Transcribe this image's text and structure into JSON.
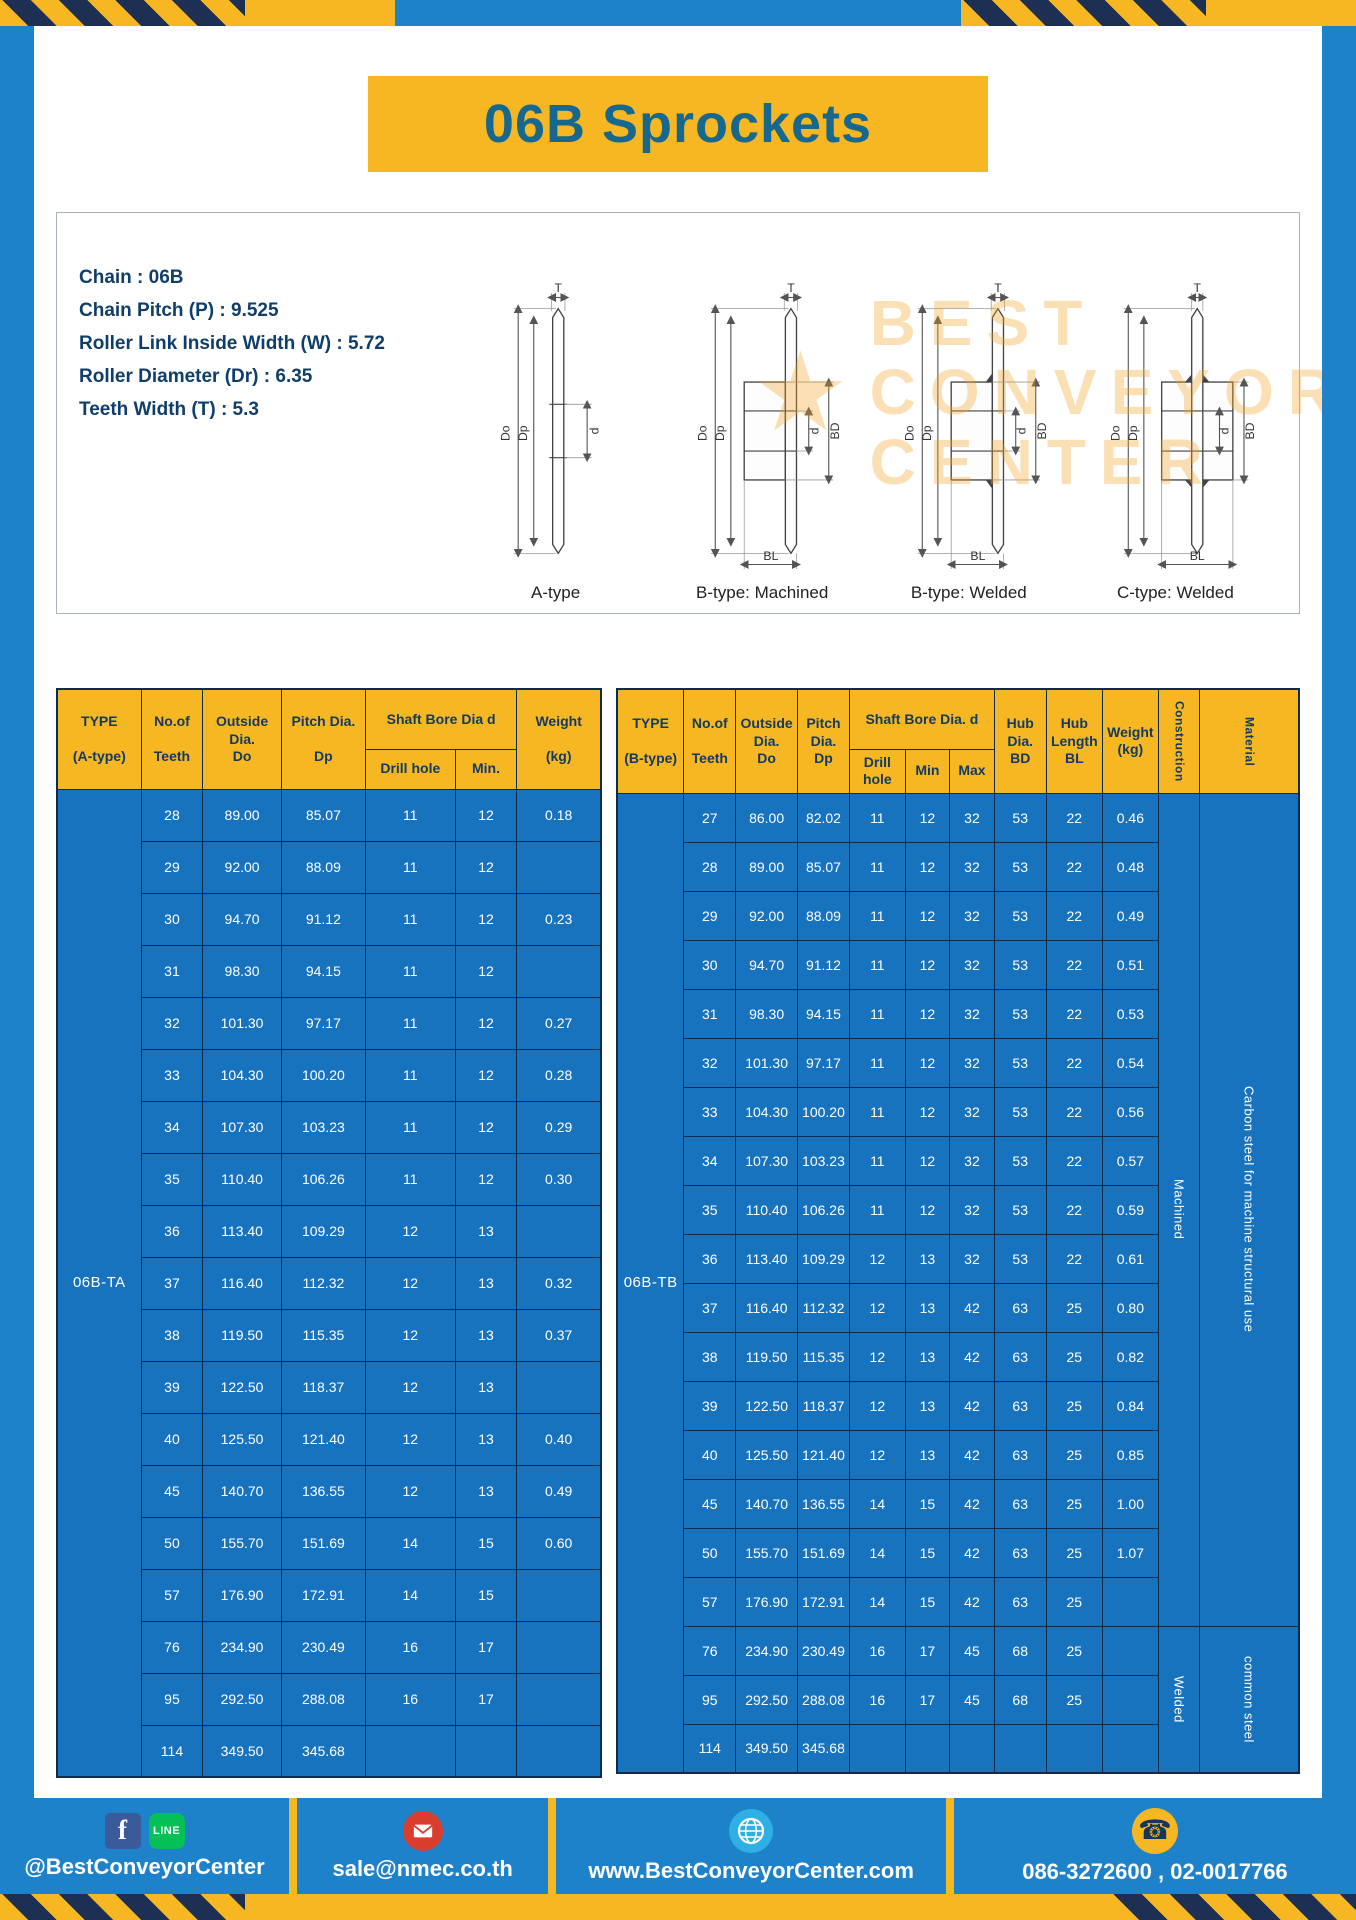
{
  "page": {
    "title": "06B Sprockets"
  },
  "specs": {
    "lines": [
      "Chain : 06B",
      "Chain Pitch (P) : 9.525",
      "Roller Link Inside Width (W) : 5.72",
      "Roller Diameter (Dr) : 6.35",
      "Teeth Width (T) : 5.3"
    ],
    "watermark": {
      "line1": "BEST",
      "line2": "CONVEYOR",
      "line3": "CENTER"
    },
    "drawings": [
      {
        "caption": "A-type",
        "labels": [
          "T",
          "Do",
          "Dp",
          "d"
        ]
      },
      {
        "caption": "B-type: Machined",
        "labels": [
          "T",
          "Do",
          "Dp",
          "d",
          "BD",
          "BL"
        ]
      },
      {
        "caption": "B-type: Welded",
        "labels": [
          "T",
          "Do",
          "Dp",
          "d",
          "BD",
          "BL"
        ]
      },
      {
        "caption": "C-type: Welded",
        "labels": [
          "T",
          "Do",
          "Dp",
          "d",
          "BD",
          "BL"
        ]
      }
    ]
  },
  "table_a": {
    "type_label": "06B-TA",
    "headers": {
      "type": "TYPE\n\n(A-type)",
      "teeth": "No.of\n\nTeeth",
      "outside": "Outside\nDia.\nDo",
      "pitch": "Pitch Dia.\n\nDp",
      "shaft_group": "Shaft Bore Dia d",
      "drill": "Drill hole",
      "min": "Min.",
      "weight": "Weight\n\n(kg)"
    },
    "rows": [
      [
        "28",
        "89.00",
        "85.07",
        "11",
        "12",
        "0.18"
      ],
      [
        "29",
        "92.00",
        "88.09",
        "11",
        "12",
        ""
      ],
      [
        "30",
        "94.70",
        "91.12",
        "11",
        "12",
        "0.23"
      ],
      [
        "31",
        "98.30",
        "94.15",
        "11",
        "12",
        ""
      ],
      [
        "32",
        "101.30",
        "97.17",
        "11",
        "12",
        "0.27"
      ],
      [
        "33",
        "104.30",
        "100.20",
        "11",
        "12",
        "0.28"
      ],
      [
        "34",
        "107.30",
        "103.23",
        "11",
        "12",
        "0.29"
      ],
      [
        "35",
        "110.40",
        "106.26",
        "11",
        "12",
        "0.30"
      ],
      [
        "36",
        "113.40",
        "109.29",
        "12",
        "13",
        ""
      ],
      [
        "37",
        "116.40",
        "112.32",
        "12",
        "13",
        "0.32"
      ],
      [
        "38",
        "119.50",
        "115.35",
        "12",
        "13",
        "0.37"
      ],
      [
        "39",
        "122.50",
        "118.37",
        "12",
        "13",
        ""
      ],
      [
        "40",
        "125.50",
        "121.40",
        "12",
        "13",
        "0.40"
      ],
      [
        "45",
        "140.70",
        "136.55",
        "12",
        "13",
        "0.49"
      ],
      [
        "50",
        "155.70",
        "151.69",
        "14",
        "15",
        "0.60"
      ],
      [
        "57",
        "176.90",
        "172.91",
        "14",
        "15",
        ""
      ],
      [
        "76",
        "234.90",
        "230.49",
        "16",
        "17",
        ""
      ],
      [
        "95",
        "292.50",
        "288.08",
        "16",
        "17",
        ""
      ],
      [
        "114",
        "349.50",
        "345.68",
        "",
        "",
        ""
      ]
    ]
  },
  "table_b": {
    "type_label": "06B-TB",
    "headers": {
      "type": "TYPE\n\n(B-type)",
      "teeth": "No.of\n\nTeeth",
      "outside": "Outside\nDia.\nDo",
      "pitch": "Pitch\nDia.\nDp",
      "shaft_group": "Shaft Bore Dia. d",
      "drill": "Drill hole",
      "min": "Min",
      "max": "Max",
      "hub_dia": "Hub\nDia.\nBD",
      "hub_len": "Hub\nLength\nBL",
      "weight": "Weight\n(kg)",
      "construction": "Construction",
      "material": "Material"
    },
    "rows": [
      [
        "27",
        "86.00",
        "82.02",
        "11",
        "12",
        "32",
        "53",
        "22",
        "0.46"
      ],
      [
        "28",
        "89.00",
        "85.07",
        "11",
        "12",
        "32",
        "53",
        "22",
        "0.48"
      ],
      [
        "29",
        "92.00",
        "88.09",
        "11",
        "12",
        "32",
        "53",
        "22",
        "0.49"
      ],
      [
        "30",
        "94.70",
        "91.12",
        "11",
        "12",
        "32",
        "53",
        "22",
        "0.51"
      ],
      [
        "31",
        "98.30",
        "94.15",
        "11",
        "12",
        "32",
        "53",
        "22",
        "0.53"
      ],
      [
        "32",
        "101.30",
        "97.17",
        "11",
        "12",
        "32",
        "53",
        "22",
        "0.54"
      ],
      [
        "33",
        "104.30",
        "100.20",
        "11",
        "12",
        "32",
        "53",
        "22",
        "0.56"
      ],
      [
        "34",
        "107.30",
        "103.23",
        "11",
        "12",
        "32",
        "53",
        "22",
        "0.57"
      ],
      [
        "35",
        "110.40",
        "106.26",
        "11",
        "12",
        "32",
        "53",
        "22",
        "0.59"
      ],
      [
        "36",
        "113.40",
        "109.29",
        "12",
        "13",
        "32",
        "53",
        "22",
        "0.61"
      ],
      [
        "37",
        "116.40",
        "112.32",
        "12",
        "13",
        "42",
        "63",
        "25",
        "0.80"
      ],
      [
        "38",
        "119.50",
        "115.35",
        "12",
        "13",
        "42",
        "63",
        "25",
        "0.82"
      ],
      [
        "39",
        "122.50",
        "118.37",
        "12",
        "13",
        "42",
        "63",
        "25",
        "0.84"
      ],
      [
        "40",
        "125.50",
        "121.40",
        "12",
        "13",
        "42",
        "63",
        "25",
        "0.85"
      ],
      [
        "45",
        "140.70",
        "136.55",
        "14",
        "15",
        "42",
        "63",
        "25",
        "1.00"
      ],
      [
        "50",
        "155.70",
        "151.69",
        "14",
        "15",
        "42",
        "63",
        "25",
        "1.07"
      ],
      [
        "57",
        "176.90",
        "172.91",
        "14",
        "15",
        "42",
        "63",
        "25",
        ""
      ],
      [
        "76",
        "234.90",
        "230.49",
        "16",
        "17",
        "45",
        "68",
        "25",
        ""
      ],
      [
        "95",
        "292.50",
        "288.08",
        "16",
        "17",
        "45",
        "68",
        "25",
        ""
      ],
      [
        "114",
        "349.50",
        "345.68",
        "",
        "",
        "",
        "",
        "",
        ""
      ]
    ],
    "construction_spans": [
      {
        "label": "Machined",
        "rows": 17
      },
      {
        "label": "Welded",
        "rows": 3
      }
    ],
    "material_spans": [
      {
        "label": "Carbon steel for machine structural use",
        "rows": 17
      },
      {
        "label": "common steel",
        "rows": 3
      }
    ]
  },
  "footer": {
    "facebook_icon_text": "f",
    "line_icon_text": "LINE",
    "social": "@BestConveyorCenter",
    "email": "sale@nmec.co.th",
    "website": "www.BestConveyorCenter.com",
    "phone": "086-3272600 , 02-0017766"
  },
  "colors": {
    "accent_yellow": "#f7b722",
    "page_blue": "#1e82ca",
    "table_blue": "#1873bf",
    "stripe_navy": "#1d3054",
    "title_teal": "#17688f"
  }
}
